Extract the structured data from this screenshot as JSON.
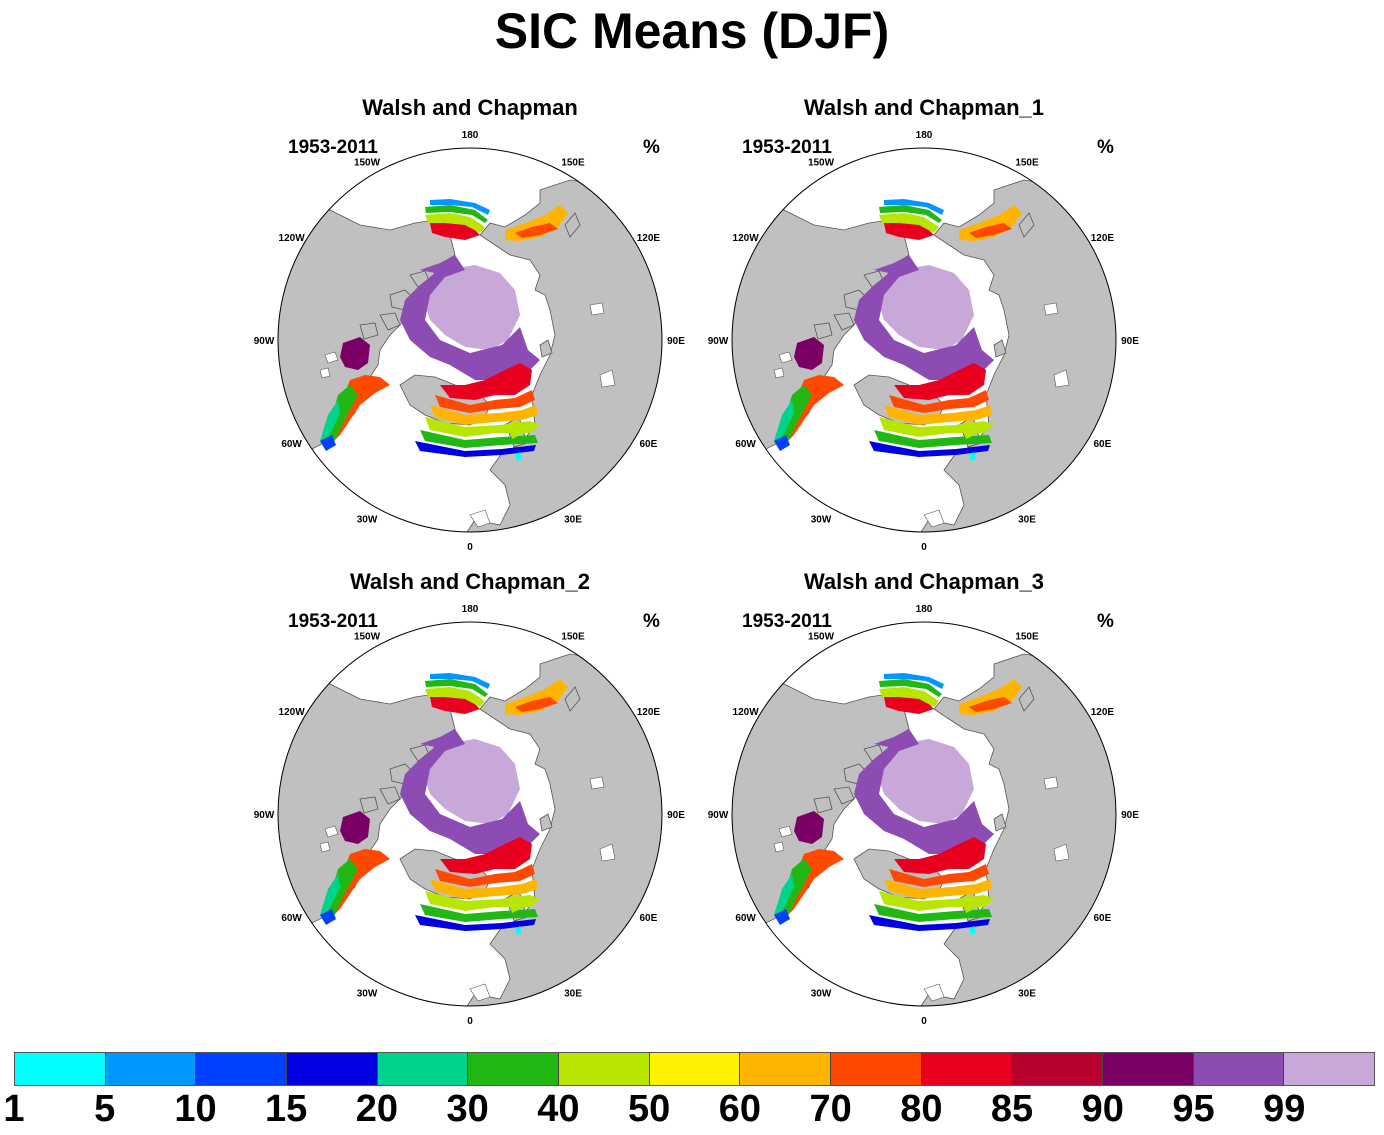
{
  "title": "SIC Means (DJF)",
  "panels": [
    {
      "title": "Walsh and Chapman",
      "period": "1953-2011",
      "unit": "%"
    },
    {
      "title": "Walsh and Chapman_1",
      "period": "1953-2011",
      "unit": "%"
    },
    {
      "title": "Walsh and Chapman_2",
      "period": "1953-2011",
      "unit": "%"
    },
    {
      "title": "Walsh and Chapman_3",
      "period": "1953-2011",
      "unit": "%"
    }
  ],
  "longitude_labels": [
    "180",
    "150E",
    "120E",
    "90E",
    "60E",
    "30E",
    "0",
    "30W",
    "60W",
    "90W",
    "120W",
    "150W"
  ],
  "colorbar": {
    "colors": [
      "#00ffff",
      "#0098ff",
      "#0040ff",
      "#0000e0",
      "#00d48a",
      "#22b814",
      "#b8e600",
      "#fff200",
      "#ffb400",
      "#ff4800",
      "#e8001e",
      "#b8002e",
      "#7a0066",
      "#8c4cb4",
      "#c8a8d8"
    ],
    "labels": [
      "1",
      "5",
      "10",
      "15",
      "20",
      "30",
      "40",
      "50",
      "60",
      "70",
      "80",
      "85",
      "90",
      "95",
      "99"
    ]
  },
  "map_colors": {
    "land": "#c0c0c0",
    "ocean": "#ffffff",
    "coast": "#555555"
  }
}
